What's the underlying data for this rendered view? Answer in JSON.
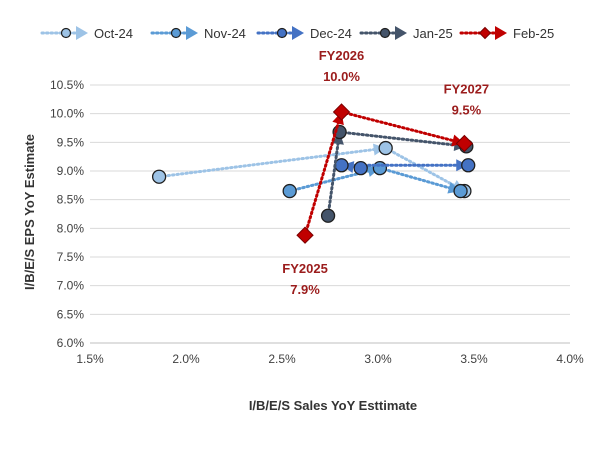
{
  "chart_data": {
    "type": "scatter",
    "title": "",
    "xlabel": "I/B/E/S Sales YoY Esttimate",
    "ylabel": "I/B/E/S EPS YoY Estimate",
    "xlim": [
      1.5,
      4.0
    ],
    "ylim": [
      6.0,
      10.5
    ],
    "x_ticks": [
      1.5,
      2.0,
      2.5,
      3.0,
      3.5,
      4.0
    ],
    "x_tick_labels": [
      "1.5%",
      "2.0%",
      "2.5%",
      "3.0%",
      "3.5%",
      "4.0%"
    ],
    "y_ticks": [
      6.0,
      6.5,
      7.0,
      7.5,
      8.0,
      8.5,
      9.0,
      9.5,
      10.0,
      10.5
    ],
    "y_tick_labels": [
      "6.0%",
      "6.5%",
      "7.0%",
      "7.5%",
      "8.0%",
      "8.5%",
      "9.0%",
      "9.5%",
      "10.0%",
      "10.5%"
    ],
    "legend_position": "top",
    "series": [
      {
        "name": "Oct-24",
        "color": "#9dc3e6",
        "marker": "circle",
        "points": [
          {
            "label": "FY2025",
            "x": 1.86,
            "y": 8.9
          },
          {
            "label": "FY2026",
            "x": 3.04,
            "y": 9.4
          },
          {
            "label": "FY2027",
            "x": 3.45,
            "y": 8.65
          }
        ]
      },
      {
        "name": "Nov-24",
        "color": "#5b9bd5",
        "marker": "circle",
        "points": [
          {
            "label": "FY2025",
            "x": 2.54,
            "y": 8.65
          },
          {
            "label": "FY2026",
            "x": 3.01,
            "y": 9.05
          },
          {
            "label": "FY2027",
            "x": 3.43,
            "y": 8.65
          }
        ]
      },
      {
        "name": "Dec-24",
        "color": "#4472c4",
        "marker": "circle",
        "points": [
          {
            "label": "FY2025",
            "x": 2.91,
            "y": 9.05
          },
          {
            "label": "FY2026",
            "x": 2.81,
            "y": 9.1
          },
          {
            "label": "FY2027",
            "x": 3.47,
            "y": 9.1
          }
        ]
      },
      {
        "name": "Jan-25",
        "color": "#44546a",
        "marker": "circle",
        "points": [
          {
            "label": "FY2025",
            "x": 2.74,
            "y": 8.22
          },
          {
            "label": "FY2026",
            "x": 2.8,
            "y": 9.68
          },
          {
            "label": "FY2027",
            "x": 3.46,
            "y": 9.43
          }
        ]
      },
      {
        "name": "Feb-25",
        "color": "#c00000",
        "marker": "diamond",
        "points": [
          {
            "label": "FY2025",
            "x": 2.62,
            "y": 7.88
          },
          {
            "label": "FY2026",
            "x": 2.81,
            "y": 10.03
          },
          {
            "label": "FY2027",
            "x": 3.45,
            "y": 9.48
          }
        ]
      }
    ],
    "annotations": [
      {
        "name": "fy2026",
        "title": "FY2026",
        "value": "10.0%",
        "x": 2.81,
        "y": 10.03
      },
      {
        "name": "fy2027",
        "title": "FY2027",
        "value": "9.5%",
        "x": 3.45,
        "y": 9.48
      },
      {
        "name": "fy2025",
        "title": "FY2025",
        "value": "7.9%",
        "x": 2.62,
        "y": 7.88
      }
    ]
  }
}
